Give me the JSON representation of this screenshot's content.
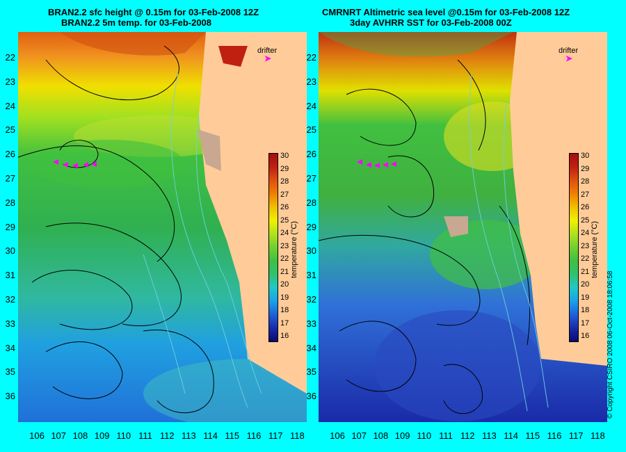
{
  "left_panel": {
    "title_line1": "BRAN2.2 sfc height @ 0.15m for 03-Feb-2008 12Z",
    "title_line2": "BRAN2.2 5m temp. for 03-Feb-2008",
    "drifter_label": "drifter",
    "drifter_arrow": "➤"
  },
  "right_panel": {
    "title_line1": "CMRNRT Altimetric sea level  @0.15m  for 03-Feb-2008 12Z",
    "title_line2": "3day AVHRR SST for 03-Feb-2008 00Z",
    "drifter_label": "drifter",
    "drifter_arrow": "➤"
  },
  "lat_ticks": [
    "22",
    "23",
    "24",
    "25",
    "26",
    "27",
    "28",
    "29",
    "30",
    "31",
    "32",
    "33",
    "34",
    "35",
    "36"
  ],
  "lon_ticks": [
    "106",
    "107",
    "108",
    "109",
    "110",
    "111",
    "112",
    "113",
    "114",
    "115",
    "116",
    "117",
    "118"
  ],
  "colorbar": {
    "ticks": [
      "30",
      "29",
      "28",
      "27",
      "26",
      "25",
      "24",
      "23",
      "22",
      "21",
      "20",
      "19",
      "18",
      "17",
      "16"
    ],
    "title": "temperature (°C)",
    "colors": [
      "#0a0a6e",
      "#1a2aa8",
      "#2060d8",
      "#1aa0e8",
      "#20c8c8",
      "#30c070",
      "#40c040",
      "#70d030",
      "#b0e020",
      "#f0f000",
      "#f0c000",
      "#f08000",
      "#e05010",
      "#c02010",
      "#a01010"
    ]
  },
  "copyright": "© Copyright CSIRO 2008    06-Oct-2008 18:06:58",
  "colors": {
    "land": "#ffcc99",
    "frame": "#00ffff",
    "drifter": "#ff00ff"
  }
}
